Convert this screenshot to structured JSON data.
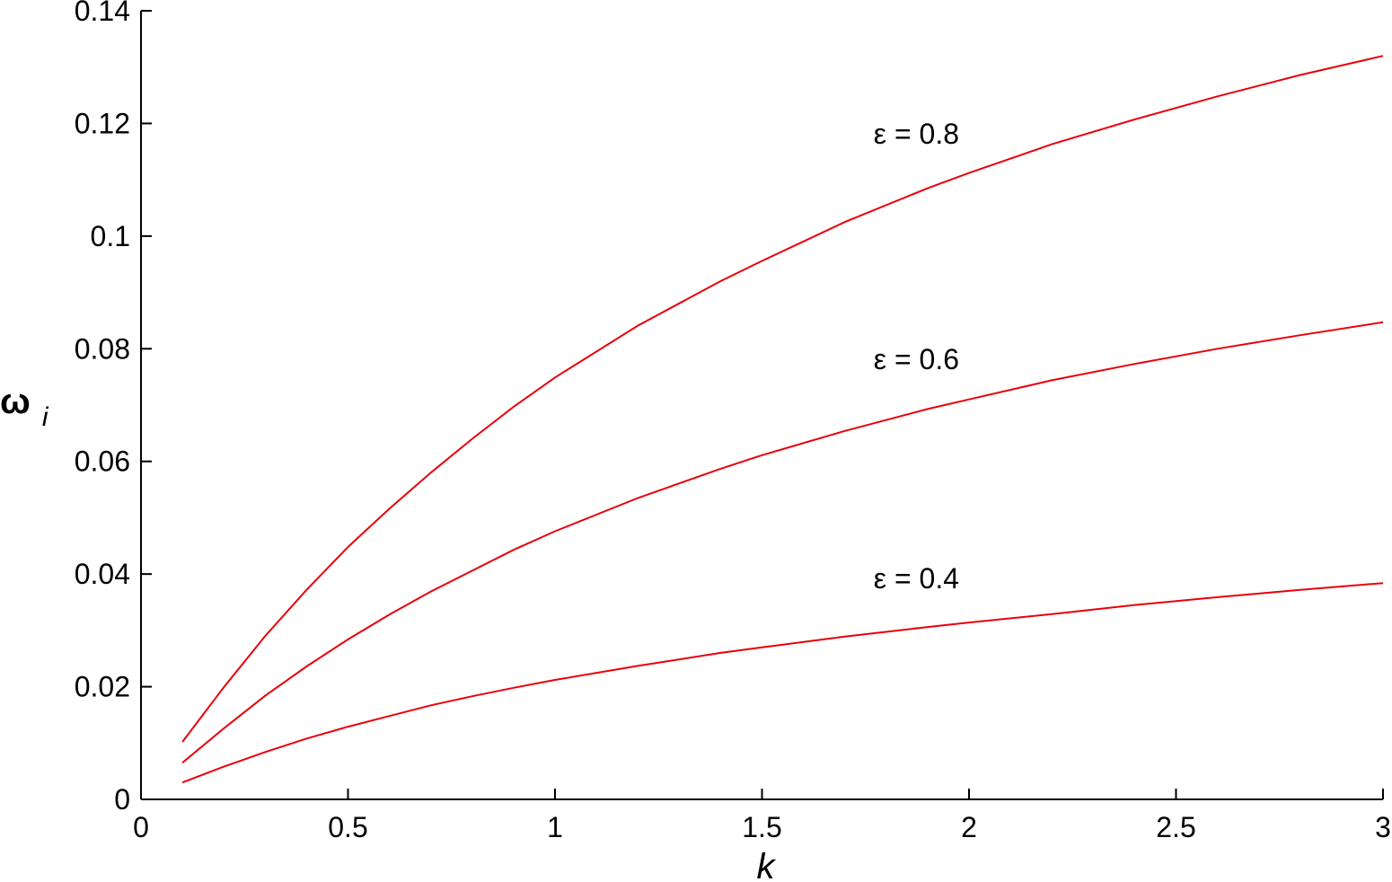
{
  "chart_data": {
    "type": "line",
    "title": "",
    "xlabel": "k",
    "ylabel_main": "ω",
    "ylabel_sub": "i",
    "xlim": [
      0,
      3
    ],
    "ylim": [
      0,
      0.14
    ],
    "xticks": [
      0,
      0.5,
      1,
      1.5,
      2,
      2.5,
      3
    ],
    "xtick_labels": [
      "0",
      "0.5",
      "1",
      "1.5",
      "2",
      "2.5",
      "3"
    ],
    "yticks": [
      0,
      0.02,
      0.04,
      0.06,
      0.08,
      0.1,
      0.12,
      0.14
    ],
    "ytick_labels": [
      "0",
      "0.02",
      "0.04",
      "0.06",
      "0.08",
      "0.1",
      "0.12",
      "0.14"
    ],
    "grid": false,
    "line_color": "#e8000b",
    "series": [
      {
        "label": "ε = 0.8",
        "x": [
          0.1,
          0.2,
          0.3,
          0.4,
          0.5,
          0.6,
          0.7,
          0.8,
          0.9,
          1.0,
          1.2,
          1.4,
          1.5,
          1.7,
          1.9,
          2.0,
          2.2,
          2.4,
          2.6,
          2.8,
          3.0
        ],
        "y": [
          0.0102,
          0.0199,
          0.029,
          0.0372,
          0.0448,
          0.0516,
          0.058,
          0.064,
          0.0697,
          0.0749,
          0.0841,
          0.092,
          0.0956,
          0.1025,
          0.1085,
          0.1112,
          0.1163,
          0.1207,
          0.1248,
          0.1286,
          0.132
        ]
      },
      {
        "label": "ε = 0.6",
        "x": [
          0.1,
          0.2,
          0.3,
          0.4,
          0.5,
          0.6,
          0.7,
          0.8,
          0.9,
          1.0,
          1.2,
          1.4,
          1.5,
          1.7,
          1.9,
          2.0,
          2.2,
          2.4,
          2.6,
          2.8,
          3.0
        ],
        "y": [
          0.0065,
          0.0126,
          0.0184,
          0.0236,
          0.0284,
          0.0328,
          0.0369,
          0.0406,
          0.0443,
          0.0476,
          0.0535,
          0.0587,
          0.0611,
          0.0654,
          0.0693,
          0.071,
          0.0744,
          0.0773,
          0.08,
          0.0824,
          0.0847
        ]
      },
      {
        "label": "ε = 0.4",
        "x": [
          0.1,
          0.2,
          0.3,
          0.4,
          0.5,
          0.6,
          0.7,
          0.8,
          0.9,
          1.0,
          1.2,
          1.4,
          1.5,
          1.7,
          1.9,
          2.0,
          2.2,
          2.4,
          2.6,
          2.8,
          3.0
        ],
        "y": [
          0.003,
          0.0058,
          0.0084,
          0.0108,
          0.0129,
          0.0148,
          0.0167,
          0.0183,
          0.0198,
          0.0212,
          0.0237,
          0.026,
          0.027,
          0.0289,
          0.0306,
          0.0314,
          0.0329,
          0.0345,
          0.0359,
          0.0372,
          0.0384
        ]
      }
    ],
    "annotations": [
      {
        "text": "ε = 0.8",
        "x": 1.8,
        "y": 0.1183
      },
      {
        "text": "ε = 0.6",
        "x": 1.8,
        "y": 0.0783
      },
      {
        "text": "ε = 0.4",
        "x": 1.8,
        "y": 0.0394
      }
    ]
  }
}
